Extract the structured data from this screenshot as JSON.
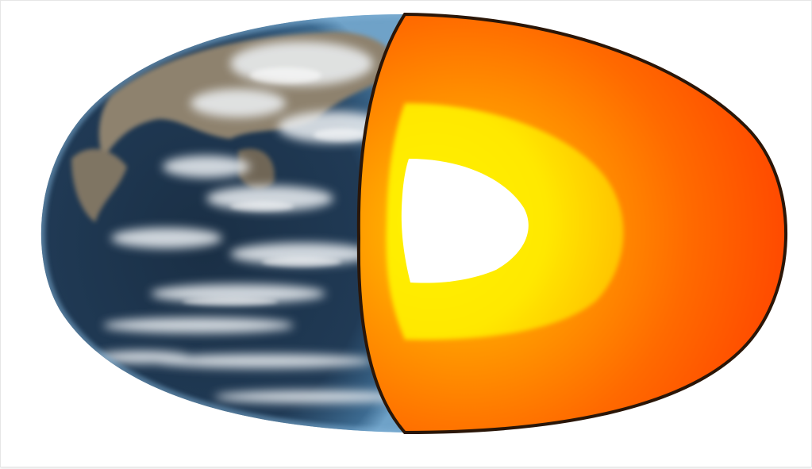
{
  "image": {
    "subject": "earth-cutaway-icon",
    "colors": {
      "ocean_dark": "#13273b",
      "ocean_mid": "#2b4a66",
      "ocean_edge": "#5b8fb8",
      "land": "#8a7d69",
      "cloud": "#f2f4f6",
      "mantle_outer": "#ff4500",
      "mantle_inner": "#ff8a00",
      "outer_core": "#ffec00",
      "inner_core": "#ffffff",
      "outline": "#2a1608"
    }
  }
}
